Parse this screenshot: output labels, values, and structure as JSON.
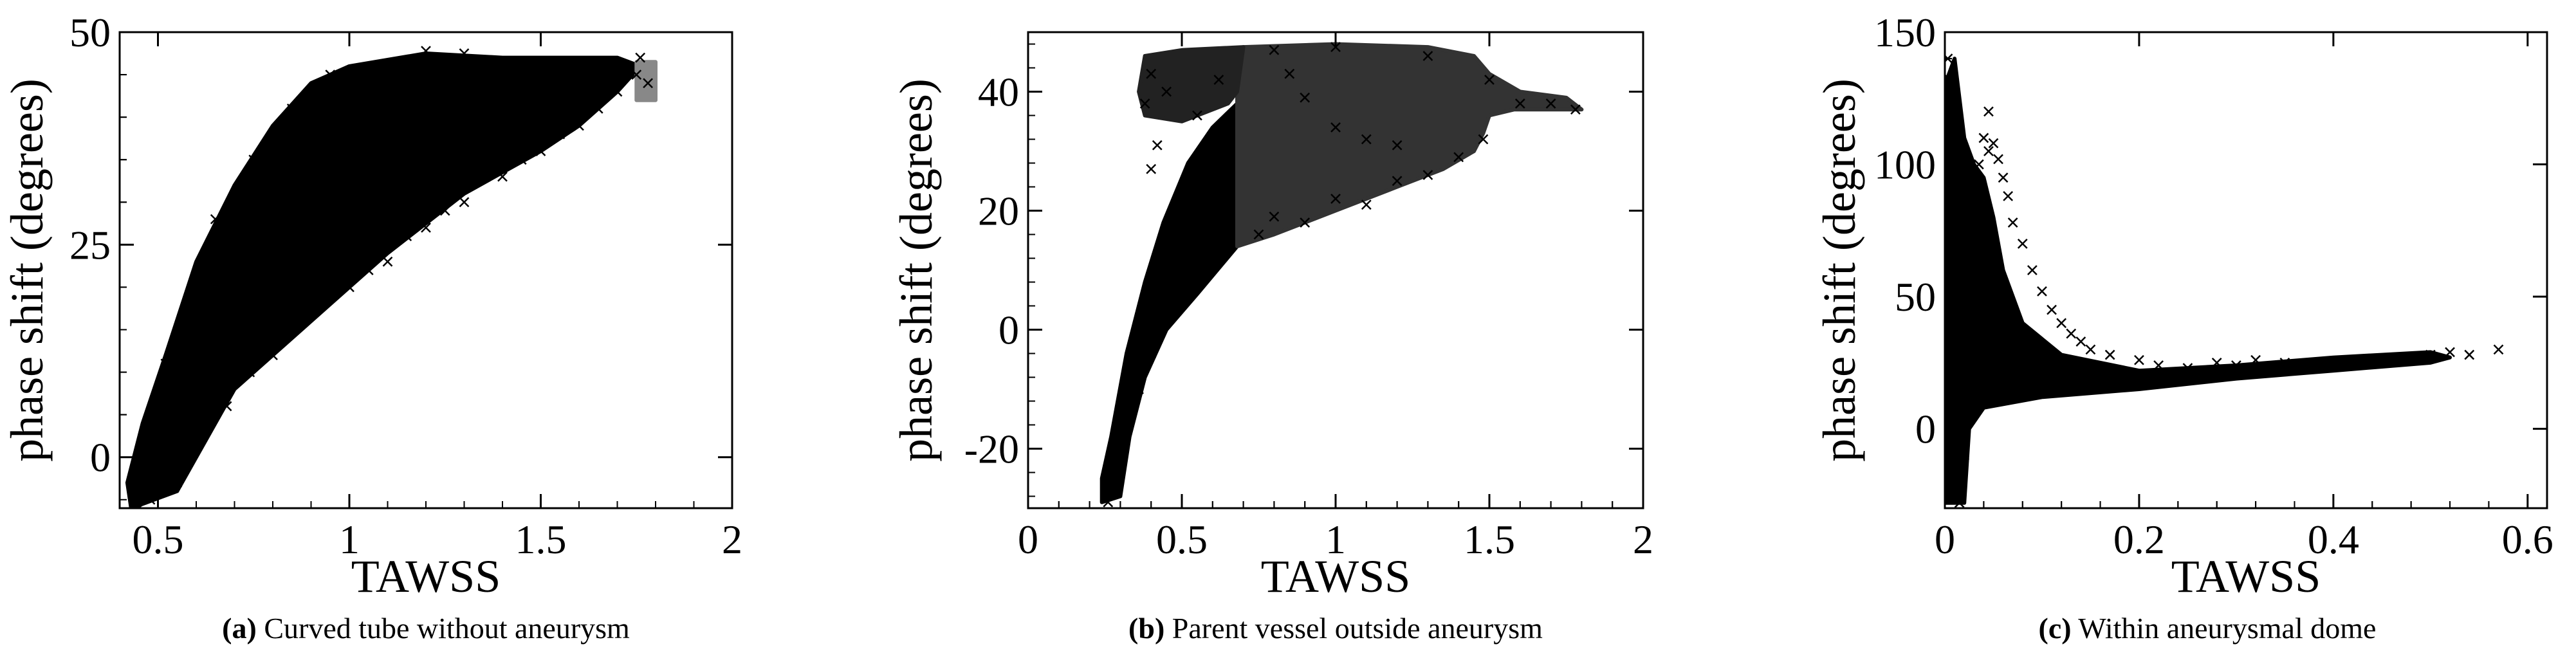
{
  "chart_data": [
    {
      "type": "scatter",
      "marker": "x",
      "caption_label": "(a)",
      "caption_text": "Curved tube without aneurysm",
      "xlabel": "TAWSS",
      "ylabel": "phase shift (degrees)",
      "xlim": [
        0.4,
        2.0
      ],
      "ylim": [
        -6,
        50
      ],
      "xticks": [
        0.5,
        1,
        1.5,
        2
      ],
      "xtick_labels": [
        "0.5",
        "1",
        "1.5",
        "2"
      ],
      "yticks": [
        0,
        25,
        50
      ],
      "ytick_labels": [
        "0",
        "25",
        "50"
      ],
      "regions": [
        {
          "fill": "#000000",
          "points": [
            [
              0.43,
              -6
            ],
            [
              0.55,
              -4
            ],
            [
              0.7,
              8
            ],
            [
              0.9,
              16
            ],
            [
              1.1,
              24
            ],
            [
              1.3,
              31
            ],
            [
              1.5,
              36
            ],
            [
              1.6,
              39
            ],
            [
              1.7,
              43
            ],
            [
              1.76,
              46
            ],
            [
              1.7,
              47
            ],
            [
              1.4,
              47
            ],
            [
              1.2,
              47.5
            ],
            [
              1.0,
              46
            ],
            [
              0.9,
              44
            ],
            [
              0.8,
              39
            ],
            [
              0.7,
              32
            ],
            [
              0.6,
              23
            ],
            [
              0.52,
              12
            ],
            [
              0.46,
              4
            ],
            [
              0.42,
              -3
            ]
          ]
        },
        {
          "fill": "#888888",
          "points": [
            [
              1.75,
              42
            ],
            [
              1.8,
              42
            ],
            [
              1.8,
              46.5
            ],
            [
              1.75,
              46.5
            ]
          ]
        }
      ],
      "points": [
        [
          0.44,
          -3
        ],
        [
          0.45,
          -6
        ],
        [
          0.48,
          -5
        ],
        [
          0.5,
          -1
        ],
        [
          0.55,
          -3
        ],
        [
          0.62,
          5
        ],
        [
          0.68,
          6
        ],
        [
          0.74,
          10
        ],
        [
          0.8,
          12
        ],
        [
          0.9,
          17
        ],
        [
          1.0,
          20
        ],
        [
          1.05,
          22
        ],
        [
          1.1,
          23
        ],
        [
          1.15,
          26
        ],
        [
          1.2,
          27
        ],
        [
          1.25,
          29
        ],
        [
          1.3,
          30
        ],
        [
          1.35,
          33
        ],
        [
          1.4,
          33
        ],
        [
          1.45,
          35
        ],
        [
          1.5,
          36
        ],
        [
          1.55,
          38
        ],
        [
          1.6,
          39
        ],
        [
          1.65,
          41
        ],
        [
          1.7,
          43
        ],
        [
          1.75,
          45
        ],
        [
          1.78,
          44
        ],
        [
          1.76,
          47
        ],
        [
          1.2,
          47.8
        ],
        [
          1.3,
          47.5
        ],
        [
          0.95,
          45
        ],
        [
          0.85,
          41
        ],
        [
          0.75,
          35
        ],
        [
          0.65,
          28
        ],
        [
          0.58,
          18
        ],
        [
          0.52,
          11
        ],
        [
          0.47,
          3
        ]
      ]
    },
    {
      "type": "scatter",
      "marker": "x",
      "caption_label": "(b)",
      "caption_text": "Parent vessel outside aneurysm",
      "xlabel": "TAWSS",
      "ylabel": "phase shift (degrees)",
      "xlim": [
        0,
        2.0
      ],
      "ylim": [
        -30,
        50
      ],
      "xticks": [
        0,
        0.5,
        1,
        1.5,
        2
      ],
      "xtick_labels": [
        "0",
        "0.5",
        "1",
        "1.5",
        "2"
      ],
      "yticks": [
        -20,
        0,
        20,
        40
      ],
      "ytick_labels": [
        "-20",
        "0",
        "20",
        "40"
      ],
      "regions": [
        {
          "fill": "#000000",
          "points": [
            [
              0.24,
              -29
            ],
            [
              0.3,
              -28
            ],
            [
              0.33,
              -18
            ],
            [
              0.38,
              -8
            ],
            [
              0.45,
              0
            ],
            [
              0.55,
              6
            ],
            [
              0.68,
              14
            ],
            [
              0.68,
              38
            ],
            [
              0.6,
              34
            ],
            [
              0.52,
              28
            ],
            [
              0.44,
              18
            ],
            [
              0.38,
              8
            ],
            [
              0.32,
              -4
            ],
            [
              0.27,
              -18
            ],
            [
              0.24,
              -25
            ]
          ]
        },
        {
          "fill": "#333333",
          "points": [
            [
              0.68,
              14
            ],
            [
              0.8,
              16
            ],
            [
              1.0,
              20
            ],
            [
              1.2,
              24
            ],
            [
              1.35,
              27
            ],
            [
              1.45,
              30
            ],
            [
              1.48,
              33
            ],
            [
              1.5,
              36
            ],
            [
              1.58,
              37
            ],
            [
              1.7,
              37
            ],
            [
              1.8,
              37
            ],
            [
              1.75,
              39
            ],
            [
              1.6,
              40
            ],
            [
              1.5,
              43
            ],
            [
              1.45,
              46
            ],
            [
              1.3,
              47.5
            ],
            [
              1.0,
              48
            ],
            [
              0.7,
              47.5
            ],
            [
              0.68,
              40
            ]
          ]
        },
        {
          "fill": "#222222",
          "points": [
            [
              0.38,
              36
            ],
            [
              0.5,
              35
            ],
            [
              0.65,
              38
            ],
            [
              0.68,
              40
            ],
            [
              0.7,
              47.5
            ],
            [
              0.5,
              47
            ],
            [
              0.38,
              46
            ],
            [
              0.36,
              40
            ]
          ]
        }
      ],
      "points": [
        [
          0.26,
          -29
        ],
        [
          0.28,
          -26
        ],
        [
          0.3,
          -22
        ],
        [
          0.33,
          -15
        ],
        [
          0.36,
          -10
        ],
        [
          0.4,
          -4
        ],
        [
          0.45,
          2
        ],
        [
          0.5,
          5
        ],
        [
          0.55,
          8
        ],
        [
          0.4,
          27
        ],
        [
          0.42,
          31
        ],
        [
          0.38,
          38
        ],
        [
          0.4,
          43
        ],
        [
          0.45,
          40
        ],
        [
          0.55,
          36
        ],
        [
          0.62,
          42
        ],
        [
          0.75,
          16
        ],
        [
          0.8,
          19
        ],
        [
          0.9,
          18
        ],
        [
          1.0,
          22
        ],
        [
          1.1,
          21
        ],
        [
          1.2,
          25
        ],
        [
          1.3,
          26
        ],
        [
          1.4,
          29
        ],
        [
          1.48,
          32
        ],
        [
          1.2,
          31
        ],
        [
          1.1,
          32
        ],
        [
          1.0,
          34
        ],
        [
          0.9,
          39
        ],
        [
          0.85,
          43
        ],
        [
          1.6,
          38
        ],
        [
          1.7,
          38
        ],
        [
          1.78,
          37
        ],
        [
          1.5,
          42
        ],
        [
          1.3,
          46
        ],
        [
          1.0,
          47.5
        ],
        [
          0.8,
          47
        ]
      ]
    },
    {
      "type": "scatter",
      "marker": "x",
      "caption_label": "(c)",
      "caption_text": "Within aneurysmal dome",
      "xlabel": "TAWSS",
      "ylabel": "phase shift (degrees)",
      "xlim": [
        0,
        0.62
      ],
      "ylim": [
        -30,
        150
      ],
      "xticks": [
        0,
        0.2,
        0.4,
        0.6
      ],
      "xtick_labels": [
        "0",
        "0.2",
        "0.4",
        "0.6"
      ],
      "yticks": [
        0,
        50,
        100,
        150
      ],
      "ytick_labels": [
        "0",
        "50",
        "100",
        "150"
      ],
      "regions": [
        {
          "fill": "#000000",
          "points": [
            [
              0.0,
              -28
            ],
            [
              0.02,
              -28
            ],
            [
              0.025,
              0
            ],
            [
              0.04,
              8
            ],
            [
              0.1,
              12
            ],
            [
              0.2,
              15
            ],
            [
              0.3,
              19
            ],
            [
              0.4,
              22
            ],
            [
              0.5,
              25
            ],
            [
              0.52,
              27
            ],
            [
              0.5,
              29
            ],
            [
              0.4,
              27
            ],
            [
              0.3,
              24
            ],
            [
              0.2,
              22
            ],
            [
              0.12,
              28
            ],
            [
              0.08,
              40
            ],
            [
              0.06,
              60
            ],
            [
              0.05,
              80
            ],
            [
              0.04,
              95
            ],
            [
              0.03,
              100
            ],
            [
              0.02,
              110
            ],
            [
              0.01,
              140
            ],
            [
              0.0,
              130
            ]
          ]
        }
      ],
      "points": [
        [
          0.003,
          140
        ],
        [
          0.005,
          132
        ],
        [
          0.008,
          125
        ],
        [
          0.01,
          118
        ],
        [
          0.012,
          105
        ],
        [
          0.015,
          98
        ],
        [
          0.02,
          90
        ],
        [
          0.025,
          80
        ],
        [
          0.03,
          72
        ],
        [
          0.035,
          65
        ],
        [
          0.04,
          110
        ],
        [
          0.045,
          105
        ],
        [
          0.05,
          108
        ],
        [
          0.055,
          102
        ],
        [
          0.06,
          95
        ],
        [
          0.065,
          88
        ],
        [
          0.07,
          78
        ],
        [
          0.08,
          70
        ],
        [
          0.09,
          60
        ],
        [
          0.1,
          52
        ],
        [
          0.11,
          45
        ],
        [
          0.12,
          40
        ],
        [
          0.13,
          36
        ],
        [
          0.14,
          33
        ],
        [
          0.15,
          30
        ],
        [
          0.17,
          28
        ],
        [
          0.2,
          26
        ],
        [
          0.22,
          24
        ],
        [
          0.25,
          23
        ],
        [
          0.28,
          25
        ],
        [
          0.3,
          24
        ],
        [
          0.32,
          26
        ],
        [
          0.35,
          25
        ],
        [
          0.38,
          24
        ],
        [
          0.4,
          25
        ],
        [
          0.42,
          26
        ],
        [
          0.45,
          25
        ],
        [
          0.48,
          27
        ],
        [
          0.5,
          28
        ],
        [
          0.52,
          29
        ],
        [
          0.54,
          28
        ],
        [
          0.57,
          30
        ],
        [
          0.012,
          -25
        ],
        [
          0.015,
          -28
        ],
        [
          0.018,
          -20
        ],
        [
          0.02,
          -10
        ],
        [
          0.045,
          120
        ],
        [
          0.035,
          100
        ]
      ]
    }
  ]
}
